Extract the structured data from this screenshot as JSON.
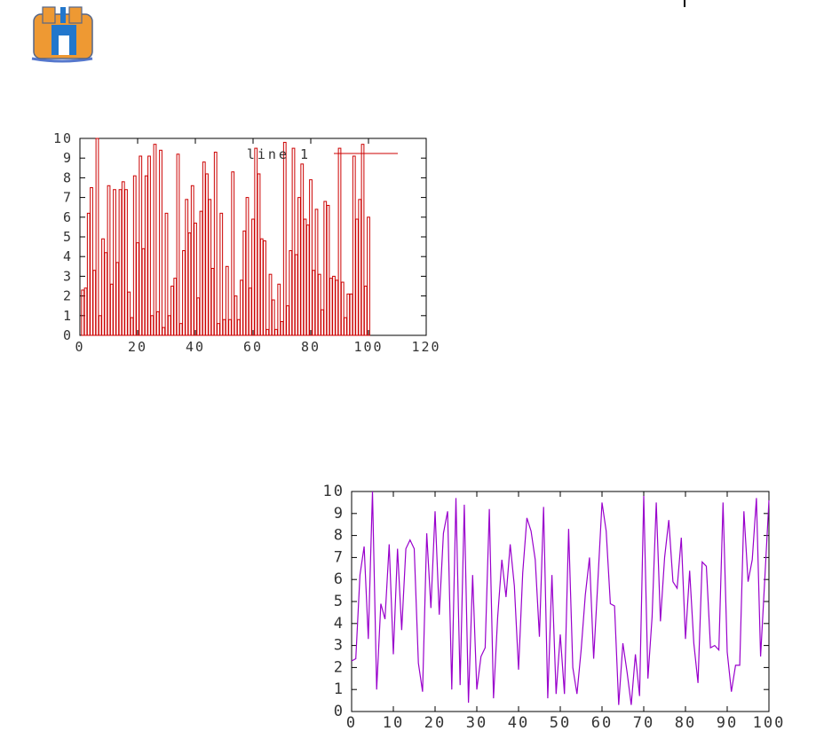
{
  "app": {
    "logo_icon": "building-logo-icon"
  },
  "colors": {
    "bars": "#cc0000",
    "line": "#9900cc",
    "axes": "#000000",
    "text": "#333333"
  },
  "chart_data": [
    {
      "type": "bar",
      "title": "",
      "xlabel": "",
      "ylabel": "",
      "xlim": [
        0,
        120
      ],
      "ylim": [
        0,
        10
      ],
      "xticks": [
        "0",
        "20",
        "40",
        "60",
        "80",
        "100",
        "120"
      ],
      "yticks": [
        "0",
        "1",
        "2",
        "3",
        "4",
        "5",
        "6",
        "7",
        "8",
        "9",
        "10"
      ],
      "legend": {
        "label": "line 1",
        "position": "top-right"
      },
      "grid": false,
      "series": [
        {
          "name": "line 1",
          "x": [
            1,
            2,
            3,
            4,
            5,
            6,
            7,
            8,
            9,
            10,
            11,
            12,
            13,
            14,
            15,
            16,
            17,
            18,
            19,
            20,
            21,
            22,
            23,
            24,
            25,
            26,
            27,
            28,
            29,
            30,
            31,
            32,
            33,
            34,
            35,
            36,
            37,
            38,
            39,
            40,
            41,
            42,
            43,
            44,
            45,
            46,
            47,
            48,
            49,
            50,
            51,
            52,
            53,
            54,
            55,
            56,
            57,
            58,
            59,
            60,
            61,
            62,
            63,
            64,
            65,
            66,
            67,
            68,
            69,
            70,
            71,
            72,
            73,
            74,
            75,
            76,
            77,
            78,
            79,
            80,
            81,
            82,
            83,
            84,
            85,
            86,
            87,
            88,
            89,
            90,
            91,
            92,
            93,
            94,
            95,
            96,
            97,
            98,
            99,
            100
          ],
          "values": [
            2.3,
            2.4,
            6.2,
            7.5,
            3.3,
            10,
            1.0,
            4.9,
            4.2,
            7.6,
            2.6,
            7.4,
            3.7,
            7.4,
            7.8,
            7.4,
            2.2,
            0.9,
            8.1,
            4.7,
            9.1,
            4.4,
            8.1,
            9.1,
            1.0,
            9.7,
            1.2,
            9.4,
            0.4,
            6.2,
            1.0,
            2.5,
            2.9,
            9.2,
            0.6,
            4.3,
            6.9,
            5.2,
            7.6,
            5.7,
            1.9,
            6.3,
            8.8,
            8.2,
            6.9,
            3.4,
            9.3,
            0.6,
            6.2,
            0.8,
            3.5,
            0.8,
            8.3,
            2.0,
            0.8,
            2.8,
            5.3,
            7.0,
            2.4,
            5.9,
            9.5,
            8.2,
            4.9,
            4.8,
            0.3,
            3.1,
            1.8,
            0.3,
            2.6,
            0.7,
            9.8,
            1.5,
            4.3,
            9.5,
            4.1,
            7.0,
            8.7,
            5.9,
            5.6,
            7.9,
            3.3,
            6.4,
            3.1,
            1.3,
            6.8,
            6.6,
            2.9,
            3.0,
            2.8,
            9.5,
            2.7,
            0.9,
            2.1,
            2.1,
            9.1,
            5.9,
            6.9,
            9.7,
            2.5,
            6.0
          ]
        }
      ]
    },
    {
      "type": "line",
      "title": "",
      "xlabel": "",
      "ylabel": "",
      "xlim": [
        0,
        100
      ],
      "ylim": [
        0,
        10
      ],
      "xticks": [
        "0",
        "10",
        "20",
        "30",
        "40",
        "50",
        "60",
        "70",
        "80",
        "90",
        "100"
      ],
      "yticks": [
        "0",
        "1",
        "2",
        "3",
        "4",
        "5",
        "6",
        "7",
        "8",
        "9",
        "10"
      ],
      "legend": null,
      "grid": false,
      "series": [
        {
          "x": [
            0,
            1,
            2,
            3,
            4,
            5,
            6,
            7,
            8,
            9,
            10,
            11,
            12,
            13,
            14,
            15,
            16,
            17,
            18,
            19,
            20,
            21,
            22,
            23,
            24,
            25,
            26,
            27,
            28,
            29,
            30,
            31,
            32,
            33,
            34,
            35,
            36,
            37,
            38,
            39,
            40,
            41,
            42,
            43,
            44,
            45,
            46,
            47,
            48,
            49,
            50,
            51,
            52,
            53,
            54,
            55,
            56,
            57,
            58,
            59,
            60,
            61,
            62,
            63,
            64,
            65,
            66,
            67,
            68,
            69,
            70,
            71,
            72,
            73,
            74,
            75,
            76,
            77,
            78,
            79,
            80,
            81,
            82,
            83,
            84,
            85,
            86,
            87,
            88,
            89,
            90,
            91,
            92,
            93,
            94,
            95,
            96,
            97,
            98,
            99,
            100
          ],
          "values": [
            2.3,
            2.4,
            6.2,
            7.5,
            3.3,
            10,
            1.0,
            4.9,
            4.2,
            7.6,
            2.6,
            7.4,
            3.7,
            7.4,
            7.8,
            7.4,
            2.2,
            0.9,
            8.1,
            4.7,
            9.1,
            4.4,
            8.1,
            9.1,
            1.0,
            9.7,
            1.2,
            9.4,
            0.4,
            6.2,
            1.0,
            2.5,
            2.9,
            9.2,
            0.6,
            4.3,
            6.9,
            5.2,
            7.6,
            5.7,
            1.9,
            6.3,
            8.8,
            8.2,
            6.9,
            3.4,
            9.3,
            0.6,
            6.2,
            0.8,
            3.5,
            0.8,
            8.3,
            2.0,
            0.8,
            2.8,
            5.3,
            7.0,
            2.4,
            5.9,
            9.5,
            8.2,
            4.9,
            4.8,
            0.3,
            3.1,
            1.8,
            0.3,
            2.6,
            0.7,
            9.8,
            1.5,
            4.3,
            9.5,
            4.1,
            7.0,
            8.7,
            5.9,
            5.6,
            7.9,
            3.3,
            6.4,
            3.1,
            1.3,
            6.8,
            6.6,
            2.9,
            3.0,
            2.8,
            9.5,
            2.7,
            0.9,
            2.1,
            2.1,
            9.1,
            5.9,
            6.9,
            9.7,
            2.5,
            6.0,
            9.6
          ]
        }
      ]
    }
  ]
}
